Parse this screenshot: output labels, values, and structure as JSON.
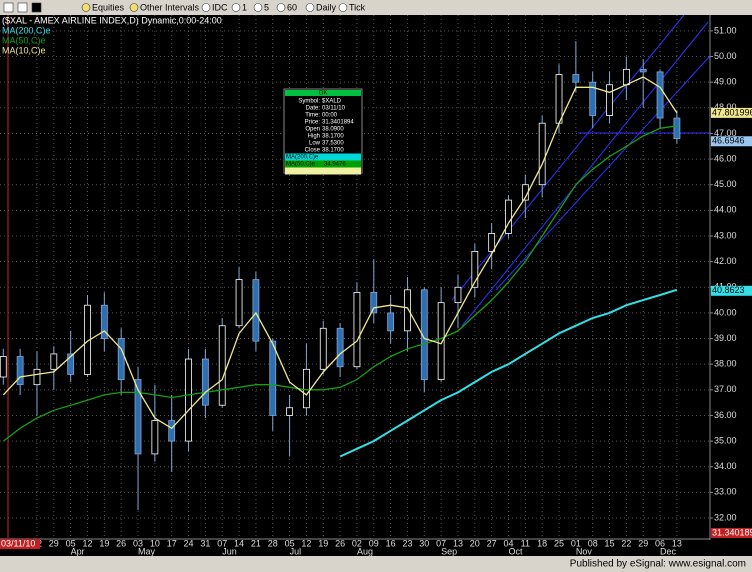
{
  "toolbar": {
    "items": [
      "Equities",
      "Other Intervals",
      "IDC",
      "1",
      "5",
      "60",
      "Daily",
      "Tick"
    ]
  },
  "footer": "Published by eSignal: www.esignal.com",
  "data_window": {
    "title": "OK",
    "rows": [
      {
        "label": "Symbol:",
        "value": "$XALD"
      },
      {
        "label": "Date:",
        "value": "03/11/10"
      },
      {
        "label": "Time:",
        "value": "00:00"
      },
      {
        "label": "Price:",
        "value": "31.3401894"
      },
      {
        "label": "Open",
        "value": "38.0900"
      },
      {
        "label": "High",
        "value": "38.1700"
      },
      {
        "label": "Low",
        "value": "37.5300"
      },
      {
        "label": "Close",
        "value": "38.1700"
      },
      {
        "label": "MA(200,C)e",
        "value": "",
        "bg": "#00d8d8"
      },
      {
        "label": "MA(50,C)e",
        "value": "34.9476",
        "bg": "#00a000"
      },
      {
        "label": "",
        "value": "",
        "bg": "#f0f0a0"
      }
    ]
  },
  "chart_data": {
    "type": "candlestick",
    "title": "($XAL - AMEX AIRLINE INDEX,D) Dynamic,0:00-24:00",
    "cursor_date": "03/11/10",
    "cursor_price": 31.340189,
    "categories": [
      null,
      null,
      "22",
      "29",
      "05",
      "12",
      "19",
      "26",
      "03",
      "10",
      "17",
      "24",
      "31",
      "07",
      "14",
      "21",
      "28",
      "05",
      "12",
      "19",
      "26",
      "02",
      "09",
      "16",
      "23",
      "30",
      "07",
      "13",
      "20",
      "27",
      "04",
      "11",
      "18",
      "25",
      "01",
      "08",
      "15",
      "22",
      "29",
      "06",
      "13"
    ],
    "months": [
      "Apr",
      "May",
      "Jun",
      "Jul",
      "Aug",
      "Sep",
      "Oct",
      "Nov",
      "Dec"
    ],
    "open": [
      37.5,
      38.3,
      37.2,
      37.8,
      38.4,
      37.6,
      40.3,
      39.0,
      37.4,
      34.5,
      35.8,
      35.0,
      38.2,
      36.4,
      39.5,
      41.3,
      38.9,
      36.0,
      36.3,
      37.8,
      39.4,
      37.9,
      40.8,
      40.0,
      39.3,
      40.9,
      37.4,
      40.4,
      41.0,
      42.4,
      43.1,
      44.4,
      45.0,
      47.4,
      49.3,
      49.0,
      47.7,
      48.9,
      49.5,
      49.4,
      47.6
    ],
    "high": [
      38.6,
      38.6,
      38.5,
      38.7,
      39.3,
      40.7,
      40.8,
      39.4,
      37.9,
      37.2,
      36.8,
      38.6,
      38.6,
      39.8,
      41.8,
      41.6,
      39.0,
      36.8,
      38.8,
      39.7,
      39.6,
      41.2,
      42.1,
      40.7,
      41.4,
      41.0,
      41.0,
      41.5,
      42.7,
      43.5,
      44.6,
      45.4,
      47.7,
      49.7,
      50.6,
      49.4,
      49.4,
      50.0,
      49.9,
      49.5,
      47.9
    ],
    "low": [
      37.2,
      36.8,
      36.0,
      37.0,
      37.3,
      37.5,
      38.5,
      36.8,
      32.3,
      34.2,
      33.8,
      34.6,
      35.9,
      36.3,
      39.4,
      38.5,
      35.4,
      34.4,
      36.0,
      37.6,
      37.5,
      37.8,
      39.6,
      38.8,
      38.5,
      36.9,
      37.3,
      39.4,
      40.6,
      41.7,
      42.9,
      43.7,
      44.5,
      47.0,
      48.6,
      47.2,
      47.4,
      48.3,
      48.0,
      47.2,
      46.6
    ],
    "close": [
      38.3,
      37.2,
      37.8,
      38.4,
      37.6,
      40.3,
      39.0,
      37.4,
      34.5,
      35.8,
      35.0,
      38.2,
      36.4,
      39.5,
      41.3,
      38.9,
      36.0,
      36.3,
      37.8,
      39.4,
      37.9,
      40.8,
      40.0,
      39.3,
      40.9,
      37.4,
      40.4,
      41.0,
      42.4,
      43.1,
      44.4,
      45.0,
      47.4,
      49.3,
      49.0,
      47.7,
      48.9,
      49.5,
      49.4,
      47.6,
      46.8
    ],
    "close_last": 46.6946,
    "up_color": "#ffffff",
    "down_color": "#2f6fb0",
    "wick_color": "#7fa8d8",
    "series": [
      {
        "name": "MA(200,C)e",
        "color": "#33e0e8",
        "last": 40.8623,
        "values": [
          null,
          null,
          null,
          null,
          null,
          null,
          null,
          null,
          null,
          null,
          null,
          null,
          null,
          null,
          null,
          null,
          null,
          null,
          null,
          null,
          34.4,
          34.7,
          35.0,
          35.4,
          35.8,
          36.2,
          36.6,
          36.9,
          37.3,
          37.7,
          38.0,
          38.4,
          38.8,
          39.2,
          39.5,
          39.8,
          40.0,
          40.3,
          40.5,
          40.7,
          40.9
        ]
      },
      {
        "name": "MA(50,C)e",
        "color": "#14a014",
        "values": [
          35.0,
          35.5,
          35.9,
          36.2,
          36.4,
          36.6,
          36.8,
          36.9,
          36.9,
          36.8,
          36.7,
          36.8,
          36.9,
          37.0,
          37.1,
          37.2,
          37.2,
          37.1,
          37.0,
          37.0,
          37.1,
          37.4,
          37.9,
          38.3,
          38.6,
          38.8,
          39.0,
          39.3,
          39.9,
          40.5,
          41.2,
          42.0,
          43.0,
          44.0,
          45.0,
          45.6,
          46.1,
          46.5,
          46.9,
          47.2,
          47.3
        ]
      },
      {
        "name": "MA(10,C)e",
        "color": "#f0e890",
        "last": 47.801996,
        "values": [
          36.8,
          37.5,
          37.6,
          37.7,
          38.3,
          38.9,
          39.3,
          38.6,
          37.0,
          35.9,
          35.5,
          36.2,
          36.9,
          37.4,
          39.2,
          40.0,
          38.8,
          37.3,
          36.8,
          37.7,
          38.4,
          38.9,
          40.2,
          40.3,
          40.2,
          39.0,
          38.8,
          40.0,
          41.2,
          42.3,
          43.5,
          44.5,
          45.8,
          47.4,
          48.8,
          48.8,
          48.6,
          48.9,
          49.2,
          48.8,
          47.8
        ]
      }
    ],
    "ylim": [
      31.22,
      51.62
    ],
    "yticks": [
      {
        "value": 32,
        "label": "32.00"
      },
      {
        "value": 33,
        "label": "33.00"
      },
      {
        "value": 34,
        "label": "34.00"
      },
      {
        "value": 35,
        "label": "35.00"
      },
      {
        "value": 36,
        "label": "36.00"
      },
      {
        "value": 37,
        "label": "37.00"
      },
      {
        "value": 38,
        "label": "38.00"
      },
      {
        "value": 39,
        "label": "39.00"
      },
      {
        "value": 40,
        "label": "40.00"
      },
      {
        "value": 41,
        "label": "41.00"
      },
      {
        "value": 42,
        "label": "42.00"
      },
      {
        "value": 43,
        "label": "43.00"
      },
      {
        "value": 44,
        "label": "44.00"
      },
      {
        "value": 45,
        "label": "45.00"
      },
      {
        "value": 46,
        "label": "46.00"
      },
      {
        "value": 47,
        "label": "47.00"
      },
      {
        "value": 48,
        "label": "48.00"
      },
      {
        "value": 49,
        "label": "49.00"
      },
      {
        "value": 50,
        "label": "50.00"
      },
      {
        "value": 51,
        "label": "51.00"
      }
    ],
    "grid": true
  }
}
